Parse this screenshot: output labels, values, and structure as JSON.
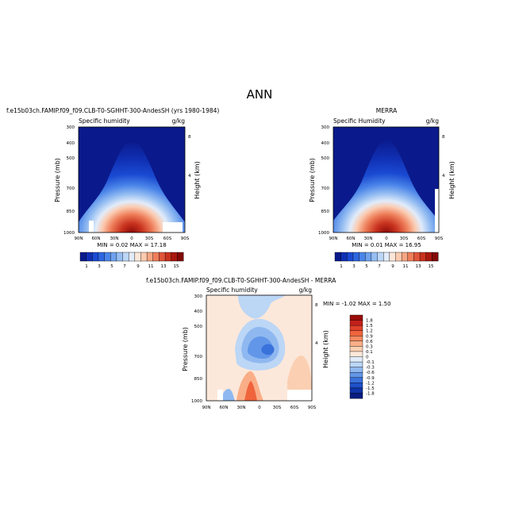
{
  "page": {
    "title": "ANN"
  },
  "panels": [
    {
      "title": "f.e15b03ch.FAMIP.f09_f09.CLB-T0-SGHHT-300-AndesSH (yrs 1980-1984)",
      "subtitle_left": "Specific humidity",
      "subtitle_right": "g/kg",
      "min_max": "MIN =   0.02   MAX =   17.18"
    },
    {
      "title": "MERRA",
      "subtitle_left": "Specific Humidity",
      "subtitle_right": "g/kg",
      "min_max": "MIN =   0.01   MAX =   16.95"
    },
    {
      "title": "f.e15b03ch.FAMIP.f09_f09.CLB-T0-SGHHT-300-AndesSH - MERRA",
      "subtitle_left": "Specific humidity",
      "subtitle_right": "g/kg",
      "min_max": "MIN =   -1.02   MAX =   1.50"
    }
  ],
  "chart_data": [
    {
      "type": "heatmap",
      "title": "f.e15b03ch.FAMIP.f09_f09.CLB-T0-SGHHT-300-AndesSH (yrs 1980-1984)",
      "xlabel": "",
      "ylabel": "Pressure (mb)",
      "y2label": "Height (km)",
      "x_ticks": [
        "90N",
        "60N",
        "30N",
        "0",
        "30S",
        "60S",
        "90S"
      ],
      "y_ticks": [
        "300",
        "400",
        "500",
        "700",
        "850",
        "1000"
      ],
      "y2_ticks": [
        "8",
        "4"
      ],
      "xlim": [
        90,
        -90
      ],
      "ylim": [
        1000,
        300
      ],
      "field_peak": 17.18,
      "field_min": 0.02,
      "colorbar": {
        "labels": [
          "1",
          "3",
          "5",
          "7",
          "9",
          "11",
          "13",
          "15"
        ],
        "colors": [
          "#0a1a8c",
          "#1030b4",
          "#1a4ad2",
          "#2e66e0",
          "#4a84e8",
          "#6ea2ee",
          "#96bef2",
          "#bcd6f6",
          "#e2ecfa",
          "#fbe6d8",
          "#fbcbb0",
          "#f6a682",
          "#ee7e5a",
          "#e0553a",
          "#c8321e",
          "#a81810",
          "#820a08"
        ]
      }
    },
    {
      "type": "heatmap",
      "title": "MERRA",
      "xlabel": "",
      "ylabel": "Pressure (mb)",
      "y2label": "Height (km)",
      "x_ticks": [
        "90N",
        "60N",
        "30N",
        "0",
        "30S",
        "60S",
        "90S"
      ],
      "y_ticks": [
        "300",
        "400",
        "500",
        "700",
        "850",
        "1000"
      ],
      "y2_ticks": [
        "8",
        "4"
      ],
      "xlim": [
        90,
        -90
      ],
      "ylim": [
        1000,
        300
      ],
      "field_peak": 16.95,
      "field_min": 0.01,
      "colorbar": {
        "labels": [
          "1",
          "3",
          "5",
          "7",
          "9",
          "11",
          "13",
          "15"
        ],
        "colors": [
          "#0a1a8c",
          "#1030b4",
          "#1a4ad2",
          "#2e66e0",
          "#4a84e8",
          "#6ea2ee",
          "#96bef2",
          "#bcd6f6",
          "#e2ecfa",
          "#fbe6d8",
          "#fbcbb0",
          "#f6a682",
          "#ee7e5a",
          "#e0553a",
          "#c8321e",
          "#a81810",
          "#820a08"
        ]
      }
    },
    {
      "type": "heatmap",
      "title": "f.e15b03ch.FAMIP.f09_f09.CLB-T0-SGHHT-300-AndesSH - MERRA",
      "xlabel": "",
      "ylabel": "Pressure (mb)",
      "y2label": "Height (km)",
      "x_ticks": [
        "90N",
        "60N",
        "30N",
        "0",
        "30S",
        "60S",
        "90S"
      ],
      "y_ticks": [
        "300",
        "400",
        "500",
        "700",
        "850",
        "1000"
      ],
      "y2_ticks": [
        "8",
        "4"
      ],
      "xlim": [
        90,
        -90
      ],
      "ylim": [
        1000,
        300
      ],
      "field_min": -1.02,
      "field_max": 1.5,
      "colorbar": {
        "labels": [
          "1.8",
          "1.5",
          "1.2",
          "0.9",
          "0.6",
          "0.3",
          "0.1",
          "0",
          "-0.1",
          "-0.3",
          "-0.6",
          "-0.9",
          "-1.2",
          "-1.5",
          "-1.8"
        ],
        "colors": [
          "#9a0c08",
          "#c4201a",
          "#e0402a",
          "#f0643c",
          "#f68a60",
          "#f9ae88",
          "#fbcfb2",
          "#fce8da",
          "#e0ecfa",
          "#bcd6f6",
          "#90b8f0",
          "#6296e8",
          "#3a72dc",
          "#1e50c8",
          "#0f32a6",
          "#081c80"
        ]
      }
    }
  ]
}
